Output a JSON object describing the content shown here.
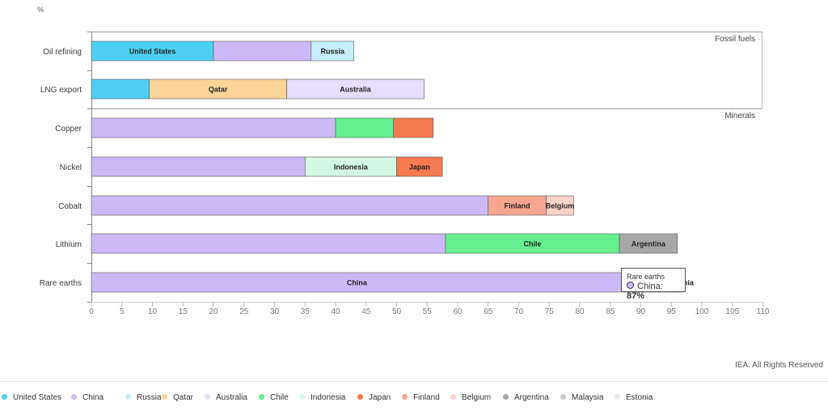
{
  "chart_data": {
    "type": "bar",
    "orientation": "horizontal",
    "stacked": true,
    "unit_label": "%",
    "xlim": [
      0,
      110
    ],
    "x_ticks": [
      "0",
      "5",
      "10",
      "15",
      "20",
      "25",
      "30",
      "35",
      "40",
      "45",
      "50",
      "55",
      "60",
      "65",
      "70",
      "75",
      "80",
      "85",
      "90",
      "95",
      "100",
      "105",
      "110"
    ],
    "groups": [
      {
        "name": "Fossil fuels",
        "categories": [
          "Oil refining",
          "LNG export"
        ]
      },
      {
        "name": "Minerals",
        "categories": [
          "Copper",
          "Nickel",
          "Cobalt",
          "Lithium",
          "Rare earths"
        ]
      }
    ],
    "categories": [
      "Oil refining",
      "LNG export",
      "Copper",
      "Nickel",
      "Cobalt",
      "Lithium",
      "Rare earths"
    ],
    "rows": [
      {
        "category": "Oil refining",
        "segments": [
          {
            "series": "United States",
            "value": 20,
            "label": "United States"
          },
          {
            "series": "China",
            "value": 16,
            "label": ""
          },
          {
            "series": "Russia",
            "value": 7,
            "label": "Russia"
          }
        ]
      },
      {
        "category": "LNG export",
        "segments": [
          {
            "series": "United States",
            "value": 9.5,
            "label": ""
          },
          {
            "series": "Qatar",
            "value": 22.5,
            "label": "Qatar"
          },
          {
            "series": "Australia",
            "value": 22.5,
            "label": "Australia"
          }
        ]
      },
      {
        "category": "Copper",
        "segments": [
          {
            "series": "China",
            "value": 40,
            "label": ""
          },
          {
            "series": "Chile",
            "value": 9.5,
            "label": ""
          },
          {
            "series": "Japan",
            "value": 6.5,
            "label": ""
          }
        ]
      },
      {
        "category": "Nickel",
        "segments": [
          {
            "series": "China",
            "value": 35,
            "label": ""
          },
          {
            "series": "Indonesia",
            "value": 15,
            "label": "Indonesia"
          },
          {
            "series": "Japan",
            "value": 7.5,
            "label": "Japan"
          }
        ]
      },
      {
        "category": "Cobalt",
        "segments": [
          {
            "series": "China",
            "value": 65,
            "label": ""
          },
          {
            "series": "Finland",
            "value": 9.5,
            "label": "Finland"
          },
          {
            "series": "Belgium",
            "value": 4.5,
            "label": "Belgium"
          }
        ]
      },
      {
        "category": "Lithium",
        "segments": [
          {
            "series": "China",
            "value": 58,
            "label": ""
          },
          {
            "series": "Chile",
            "value": 28.5,
            "label": "Chile"
          },
          {
            "series": "Argentina",
            "value": 9.5,
            "label": "Argentina"
          }
        ]
      },
      {
        "category": "Rare earths",
        "segments": [
          {
            "series": "China",
            "value": 87,
            "label": "China"
          },
          {
            "series": "Malaysia",
            "value": 9,
            "label": ""
          },
          {
            "series": "Estonia",
            "value": 1,
            "label": "Estonia"
          }
        ]
      }
    ],
    "series": [
      {
        "name": "United States",
        "color": "#4dcff5"
      },
      {
        "name": "China",
        "color": "#cdb9f7"
      },
      {
        "name": "Russia",
        "color": "#c5edfb"
      },
      {
        "name": "Qatar",
        "color": "#fbd597"
      },
      {
        "name": "Australia",
        "color": "#e6dcfb"
      },
      {
        "name": "Chile",
        "color": "#66ef90"
      },
      {
        "name": "Indonesia",
        "color": "#d4f8e3"
      },
      {
        "name": "Japan",
        "color": "#f57a4f"
      },
      {
        "name": "Finland",
        "color": "#f8a592"
      },
      {
        "name": "Belgium",
        "color": "#fcd3c9"
      },
      {
        "name": "Argentina",
        "color": "#a8a8a8"
      },
      {
        "name": "Malaysia",
        "color": "#c9c9c9"
      },
      {
        "name": "Estonia",
        "color": "#e9e9e9"
      }
    ],
    "tooltip": {
      "title": "Rare earths",
      "series": "China",
      "value": "87%"
    },
    "source": "IEA. All Rights Reserved"
  }
}
